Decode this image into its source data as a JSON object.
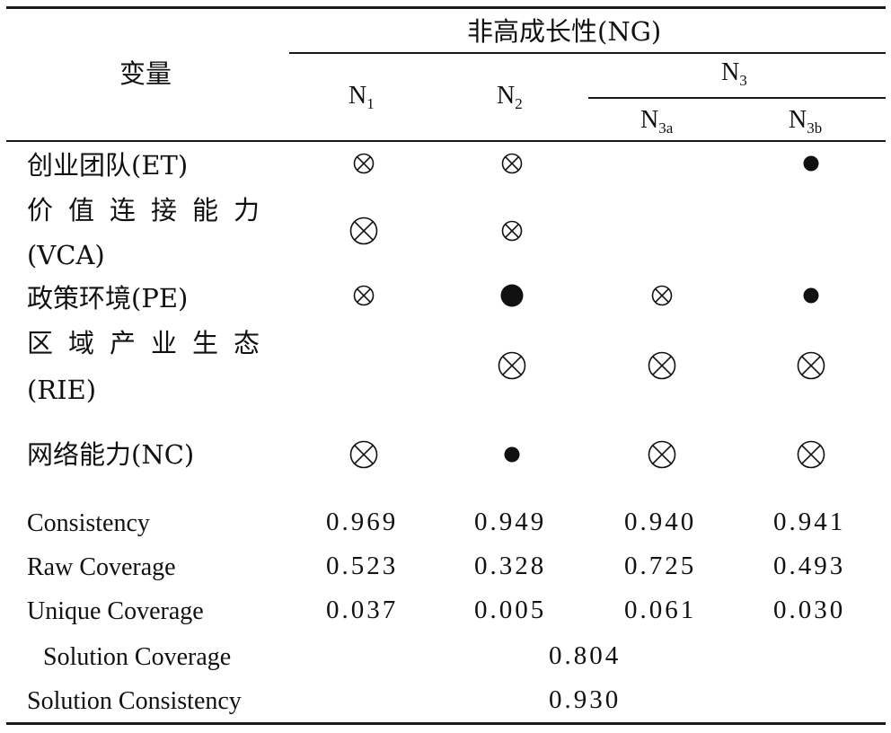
{
  "header": {
    "variable_label": "变量",
    "group_label": "非高成长性(NG)",
    "n1": {
      "base": "N",
      "sub": "1"
    },
    "n2": {
      "base": "N",
      "sub": "2"
    },
    "n3": {
      "base": "N",
      "sub": "3"
    },
    "n3a": {
      "base": "N",
      "sub": "3a"
    },
    "n3b": {
      "base": "N",
      "sub": "3b"
    }
  },
  "rows": [
    {
      "name_line1": "创业团队(ET)",
      "name_line2": "",
      "cells": [
        "small-absent",
        "small-absent",
        "",
        "small-present"
      ]
    },
    {
      "name_line1": "价值连接能力",
      "name_line2": "(VCA)",
      "cells": [
        "large-absent",
        "small-absent",
        "",
        ""
      ]
    },
    {
      "name_line1": "政策环境(PE)",
      "name_line2": "",
      "cells": [
        "small-absent",
        "large-present",
        "small-absent",
        "small-present"
      ]
    },
    {
      "name_line1": "区域产业生态",
      "name_line2": "(RIE)",
      "cells": [
        "",
        "large-absent",
        "large-absent",
        "large-absent"
      ]
    },
    {
      "name_line1": "网络能力(NC)",
      "name_line2": "",
      "cells": [
        "large-absent",
        "small-present",
        "large-absent",
        "large-absent"
      ]
    }
  ],
  "stats": [
    {
      "label": "Consistency",
      "values": [
        "0.969",
        "0.949",
        "0.940",
        "0.941"
      ]
    },
    {
      "label": "Raw Coverage",
      "values": [
        "0.523",
        "0.328",
        "0.725",
        "0.493"
      ]
    },
    {
      "label": "Unique Coverage",
      "values": [
        "0.037",
        "0.005",
        "0.061",
        "0.030"
      ]
    }
  ],
  "solution": {
    "coverage_label": "Solution Coverage",
    "coverage_value": "0.804",
    "consistency_label": "Solution Consistency",
    "consistency_value": "0.930"
  },
  "legend_symbols": {
    "large-absent": "circled-x-large-icon",
    "small-absent": "circled-x-small-icon",
    "large-present": "filled-circle-large-icon",
    "small-present": "filled-circle-small-icon"
  }
}
